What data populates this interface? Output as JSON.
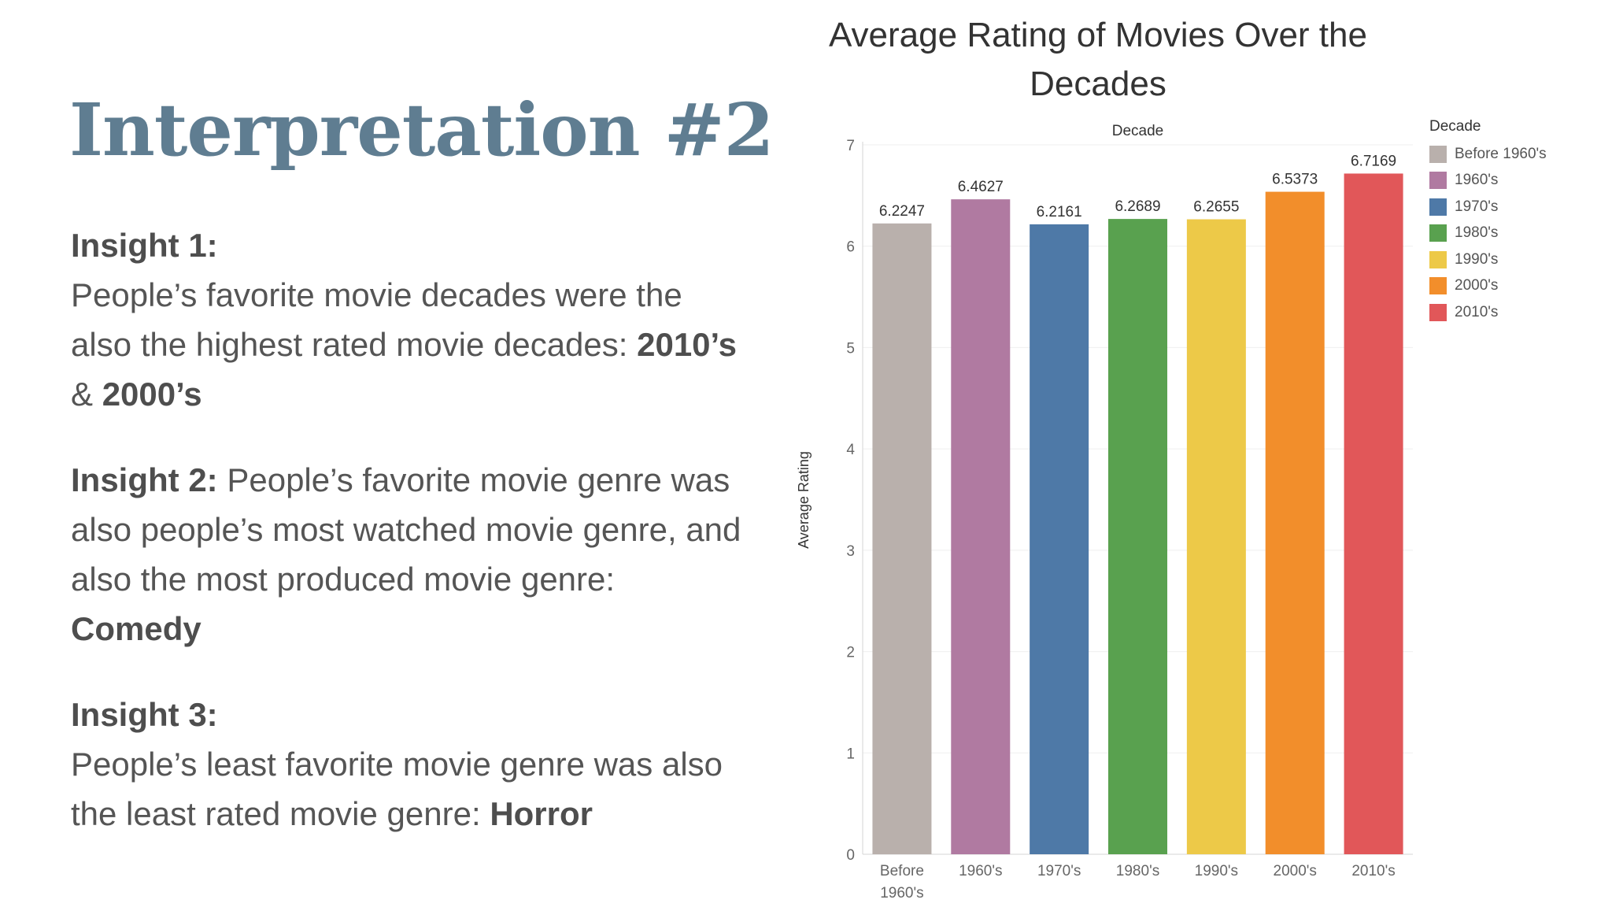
{
  "slide": {
    "title": "Interpretation #2",
    "insight1": {
      "head": "Insight 1:",
      "text": "People’s favorite movie decades were the also the highest rated movie decades: ",
      "bold1": "2010’s",
      "sep": " & ",
      "bold2": "2000’s"
    },
    "insight2": {
      "head": "Insight 2:",
      "text": " People’s favorite movie genre was also people’s most watched movie genre, and also the most produced movie genre: ",
      "bold": "Comedy"
    },
    "insight3": {
      "head": "Insight 3:",
      "text": "People’s least favorite movie genre was also the least rated movie genre: ",
      "bold": "Horror"
    }
  },
  "chart_data": {
    "type": "bar",
    "title": "Average Rating of Movies Over the Decades",
    "column_header": "Decade",
    "ylabel": "Average Rating",
    "xlabel": "",
    "ylim": [
      0,
      7
    ],
    "yticks": [
      0,
      1,
      2,
      3,
      4,
      5,
      6,
      7
    ],
    "grid": true,
    "legend": {
      "title": "Decade",
      "placement": "right"
    },
    "categories": [
      "Before 1960's",
      "1960's",
      "1970's",
      "1980's",
      "1990's",
      "2000's",
      "2010's"
    ],
    "values": [
      6.2247,
      6.4627,
      6.2161,
      6.2689,
      6.2655,
      6.5373,
      6.7169
    ],
    "labels": [
      "6.2247",
      "6.4627",
      "6.2161",
      "6.2689",
      "6.2655",
      "6.5373",
      "6.7169"
    ],
    "colors": [
      "#b9b0ac",
      "#b07aa1",
      "#4e79a7",
      "#59a14f",
      "#edc948",
      "#f28e2b",
      "#e15759"
    ]
  }
}
